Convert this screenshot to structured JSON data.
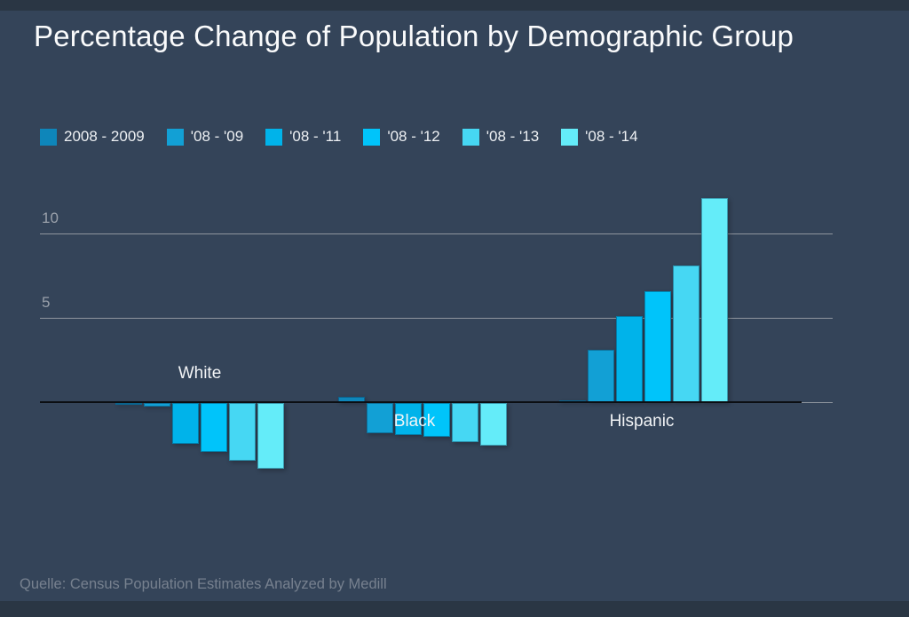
{
  "chart_data": {
    "type": "bar",
    "title": "Percentage Change of Population by Demographic Group",
    "categories": [
      "White",
      "Black",
      "Hispanic"
    ],
    "series": [
      {
        "name": "2008 - 2009",
        "color": "#0e86ba",
        "values": [
          -0.1,
          0.3,
          0.1
        ]
      },
      {
        "name": "'08 - '09",
        "color": "#12a0d5",
        "values": [
          -0.2,
          -1.8,
          3.1
        ]
      },
      {
        "name": "'08 - '11",
        "color": "#00b3ea",
        "values": [
          -2.4,
          -1.9,
          5.1
        ]
      },
      {
        "name": "'08 - '12",
        "color": "#00c4fa",
        "values": [
          -2.9,
          -2.0,
          6.6
        ]
      },
      {
        "name": "'08 - '13",
        "color": "#46d7f3",
        "values": [
          -3.4,
          -2.3,
          8.1
        ]
      },
      {
        "name": "'08 - '14",
        "color": "#64ecf9",
        "values": [
          -3.9,
          -2.5,
          12.1
        ]
      }
    ],
    "yticks": [
      5,
      10
    ],
    "ylim": [
      -4.5,
      12.5
    ],
    "grid": true,
    "legend_position": "top",
    "xlabel": "",
    "ylabel": "",
    "source": "Quelle: Census Population Estimates Analyzed by Medill"
  }
}
